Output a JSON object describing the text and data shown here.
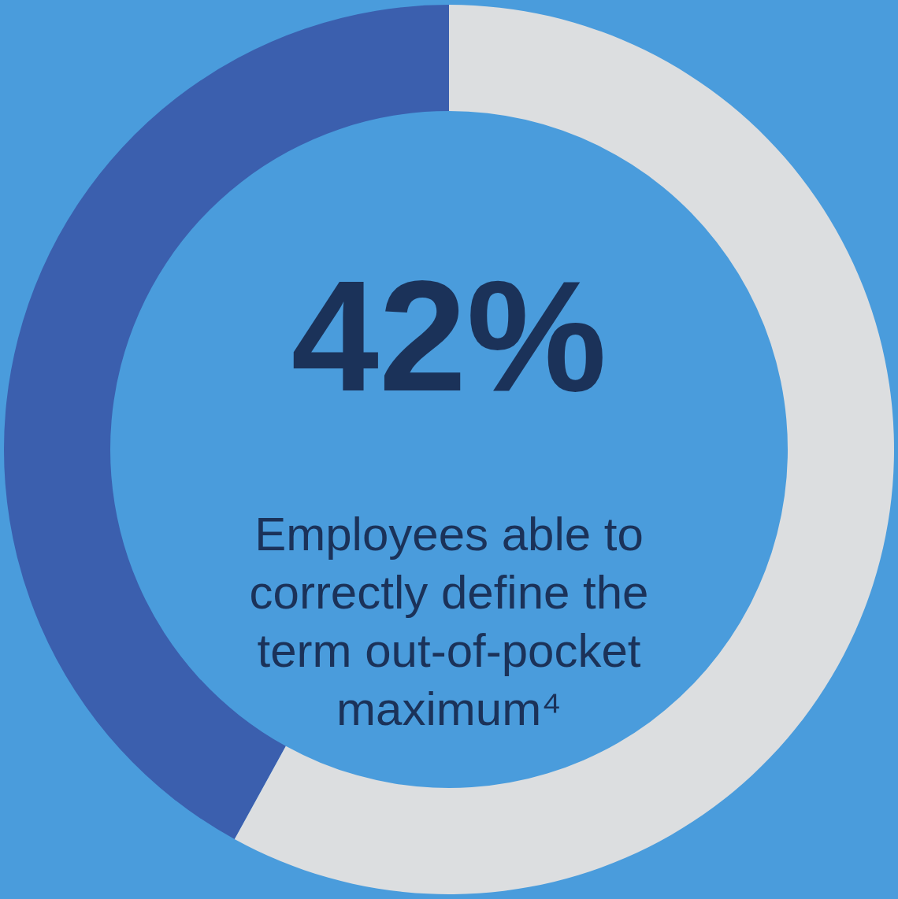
{
  "chart_data": {
    "type": "donut",
    "categories": [
      null,
      null
    ],
    "values": [
      42,
      58
    ],
    "colors": [
      "#3b5fae",
      "#dcdee0"
    ],
    "annotations": [
      "42%",
      "Employees able to\ncorrectly define the\nterm out-of-pocket\nmaximum⁴"
    ],
    "legend": false
  }
}
